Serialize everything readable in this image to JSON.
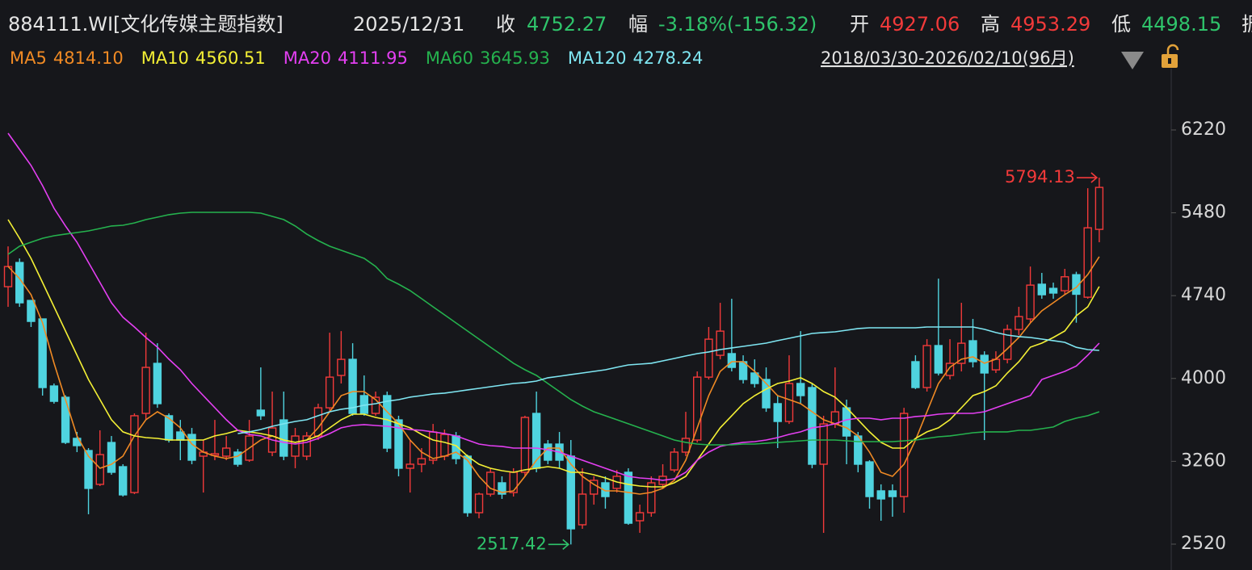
{
  "header": {
    "title": "884111.WI[文化传媒主题指数]",
    "date": "2025/12/31",
    "close_label": "收",
    "close": 4752.27,
    "change_label": "幅",
    "change": "-3.18%(-156.32)",
    "open_label": "开",
    "open": 4927.06,
    "high_label": "高",
    "high": 4953.29,
    "low_label": "低",
    "low": 4498.15,
    "amp_label": "振",
    "range": "2018/03/30-2026/02/10(96月)"
  },
  "chart_data": {
    "type": "candlestick",
    "up_color": "#f23a3a",
    "down_color": "#4fd3df",
    "ylim": [
      2289,
      6768
    ],
    "yticks": [
      2520,
      3260,
      4000,
      4740,
      5480,
      6220
    ],
    "grid": false,
    "high_marker": 5794.13,
    "low_marker": 2517.42,
    "open": [
      4820,
      5036,
      4697,
      4532,
      3933,
      3832,
      3465,
      3356,
      3054,
      3428,
      3212,
      2981,
      3688,
      4135,
      3667,
      3522,
      3500,
      3306,
      3313,
      3306,
      3342,
      3270,
      3717,
      3342,
      3630,
      3306,
      3306,
      3486,
      3738,
      4027,
      4171,
      3847,
      3688,
      3847,
      3630,
      3198,
      3234,
      3270,
      3306,
      3486,
      3306,
      2801,
      2967,
      3068,
      2981,
      3162,
      3688,
      3414,
      3414,
      3306,
      2693,
      2967,
      3068,
      3018,
      3162,
      2729,
      2801,
      3054,
      3183,
      3342,
      3450,
      4012,
      4207,
      4222,
      4150,
      4049,
      3991,
      3775,
      3616,
      3955,
      3919,
      3234,
      3594,
      3738,
      3486,
      3255,
      2996,
      2996,
      2945,
      4150,
      3919,
      4294,
      4027,
      4135,
      4337,
      4207,
      4077,
      4171,
      4438,
      4532,
      4842,
      4805,
      4784,
      4927.06,
      4726,
      5332
    ],
    "high": [
      5180,
      5072,
      4697,
      4532,
      3955,
      3850,
      3522,
      3378,
      3537,
      3486,
      3234,
      3688,
      4409,
      4315,
      3688,
      3630,
      3558,
      3450,
      3630,
      3486,
      3370,
      3630,
      4099,
      3883,
      3883,
      3558,
      3522,
      3775,
      4409,
      4423,
      4315,
      4027,
      3883,
      3883,
      3667,
      3450,
      3378,
      3594,
      3544,
      3522,
      3320,
      2981,
      3198,
      3126,
      3198,
      3667,
      3883,
      3450,
      3522,
      3450,
      3198,
      3126,
      3126,
      3183,
      3198,
      2873,
      3126,
      3234,
      3378,
      3702,
      4063,
      4460,
      4676,
      4712,
      4207,
      4171,
      4099,
      3847,
      4207,
      4423,
      3955,
      3667,
      4099,
      3811,
      3522,
      3270,
      3054,
      3054,
      3738,
      4207,
      4351,
      4892,
      4351,
      4676,
      4532,
      4243,
      4243,
      4481,
      4640,
      5000,
      4943,
      4856,
      4979,
      4953.29,
      5700,
      5794.13
    ],
    "low": [
      4640,
      4640,
      4460,
      3847,
      3775,
      3414,
      3342,
      2787,
      3039,
      3140,
      2945,
      2967,
      3630,
      3738,
      3428,
      3270,
      3234,
      2981,
      3270,
      3270,
      3212,
      3255,
      3630,
      3306,
      3270,
      3198,
      3270,
      3450,
      3702,
      3955,
      3667,
      3667,
      3667,
      3342,
      3126,
      2981,
      3162,
      3234,
      3270,
      3234,
      2765,
      2751,
      2945,
      2924,
      2945,
      3126,
      3162,
      3234,
      3198,
      2517.42,
      2657,
      2873,
      2837,
      2981,
      2693,
      2621,
      2765,
      3018,
      3162,
      3306,
      3428,
      3991,
      4171,
      4063,
      3955,
      3919,
      3702,
      3378,
      3594,
      3775,
      3198,
      2621,
      3558,
      3234,
      3162,
      2837,
      2729,
      2765,
      2801,
      3905,
      3883,
      4027,
      3991,
      4063,
      4099,
      3450,
      4049,
      4135,
      4387,
      4496,
      4712,
      4712,
      4748,
      4498.15,
      4712,
      5217
    ],
    "close": [
      5000,
      4676,
      4510,
      3919,
      3796,
      3429,
      3400,
      3018,
      3320,
      3162,
      2960,
      3667,
      4099,
      3775,
      3450,
      3450,
      3270,
      3342,
      3328,
      3378,
      3234,
      3486,
      3667,
      3558,
      3306,
      3486,
      3486,
      3738,
      4012,
      4171,
      3688,
      3688,
      3832,
      3378,
      3198,
      3234,
      3284,
      3522,
      3500,
      3284,
      2801,
      2967,
      3162,
      2967,
      3162,
      3652,
      3198,
      3270,
      3270,
      2657,
      2967,
      3090,
      2945,
      3126,
      2707,
      2801,
      3068,
      3126,
      3342,
      3465,
      4012,
      4351,
      4423,
      4099,
      3991,
      3955,
      3738,
      3616,
      3955,
      3847,
      3234,
      3594,
      3702,
      3486,
      3234,
      2945,
      2924,
      2945,
      3688,
      3919,
      4294,
      4049,
      4135,
      4315,
      4150,
      4049,
      4171,
      4438,
      4553,
      4834,
      4748,
      4763,
      4908.59,
      4752.27,
      5346,
      5707
    ],
    "series": [
      {
        "name": "MA5",
        "color": "#f08a24",
        "last": {
          "value": 4814.1,
          "label": "4814.10"
        },
        "values": [
          5001,
          4893,
          4749,
          4496,
          4136,
          3811,
          3487,
          3306,
          3198,
          3234,
          3306,
          3487,
          3631,
          3703,
          3645,
          3559,
          3414,
          3342,
          3306,
          3285,
          3306,
          3378,
          3450,
          3487,
          3450,
          3429,
          3450,
          3559,
          3703,
          3847,
          3883,
          3883,
          3811,
          3703,
          3595,
          3450,
          3342,
          3285,
          3306,
          3342,
          3270,
          3126,
          3018,
          2982,
          2996,
          3126,
          3270,
          3378,
          3378,
          3234,
          3126,
          3054,
          2996,
          2996,
          2982,
          2967,
          2982,
          3018,
          3090,
          3270,
          3559,
          3847,
          4063,
          4150,
          4150,
          4063,
          3955,
          3847,
          3811,
          3775,
          3703,
          3631,
          3595,
          3559,
          3487,
          3342,
          3162,
          3126,
          3234,
          3450,
          3703,
          3955,
          4100,
          4172,
          4193,
          4136,
          4172,
          4265,
          4366,
          4496,
          4604,
          4676,
          4749,
          4814.1,
          4929,
          5088
        ]
      },
      {
        "name": "MA10",
        "color": "#f4f035",
        "last": 4560.51,
        "values": [
          5419,
          5253,
          5073,
          4857,
          4640,
          4424,
          4208,
          3991,
          3811,
          3631,
          3523,
          3487,
          3472,
          3465,
          3450,
          3450,
          3450,
          3450,
          3487,
          3508,
          3537,
          3523,
          3508,
          3487,
          3450,
          3429,
          3450,
          3487,
          3559,
          3631,
          3681,
          3681,
          3652,
          3631,
          3595,
          3559,
          3501,
          3450,
          3429,
          3400,
          3306,
          3234,
          3198,
          3176,
          3162,
          3184,
          3198,
          3212,
          3198,
          3162,
          3162,
          3140,
          3111,
          3075,
          3054,
          3039,
          3032,
          3032,
          3068,
          3126,
          3270,
          3414,
          3559,
          3667,
          3775,
          3847,
          3905,
          3955,
          3977,
          4006,
          3955,
          3883,
          3833,
          3739,
          3631,
          3523,
          3429,
          3378,
          3378,
          3465,
          3523,
          3559,
          3631,
          3739,
          3847,
          3883,
          3934,
          4049,
          4150,
          4280,
          4316,
          4366,
          4424,
          4560.51,
          4640,
          4821
        ]
      },
      {
        "name": "MA20",
        "color": "#e43ff2",
        "last": 4111.95,
        "values": [
          6191,
          6047,
          5903,
          5722,
          5520,
          5362,
          5217,
          5037,
          4857,
          4676,
          4547,
          4460,
          4366,
          4280,
          4172,
          4078,
          3955,
          3847,
          3739,
          3631,
          3537,
          3501,
          3487,
          3450,
          3429,
          3414,
          3429,
          3465,
          3508,
          3559,
          3580,
          3588,
          3580,
          3573,
          3559,
          3544,
          3537,
          3523,
          3508,
          3487,
          3450,
          3414,
          3400,
          3393,
          3378,
          3378,
          3378,
          3364,
          3342,
          3306,
          3270,
          3234,
          3198,
          3162,
          3126,
          3111,
          3104,
          3090,
          3104,
          3162,
          3270,
          3342,
          3393,
          3414,
          3429,
          3436,
          3450,
          3472,
          3501,
          3523,
          3559,
          3573,
          3595,
          3631,
          3645,
          3645,
          3631,
          3645,
          3645,
          3660,
          3667,
          3681,
          3688,
          3688,
          3688,
          3703,
          3739,
          3775,
          3811,
          3847,
          3991,
          4027,
          4063,
          4111.95,
          4208,
          4316
        ]
      },
      {
        "name": "MA60",
        "color": "#25b24e",
        "last": 3645.93,
        "values": [
          5109,
          5181,
          5217,
          5253,
          5275,
          5290,
          5304,
          5318,
          5340,
          5362,
          5369,
          5390,
          5419,
          5441,
          5463,
          5477,
          5484,
          5484,
          5484,
          5484,
          5484,
          5484,
          5477,
          5448,
          5419,
          5362,
          5290,
          5232,
          5181,
          5145,
          5109,
          5073,
          5001,
          4893,
          4842,
          4785,
          4713,
          4640,
          4568,
          4496,
          4424,
          4352,
          4280,
          4208,
          4136,
          4078,
          4027,
          3955,
          3883,
          3811,
          3753,
          3703,
          3667,
          3631,
          3595,
          3559,
          3523,
          3487,
          3450,
          3429,
          3414,
          3407,
          3407,
          3407,
          3414,
          3414,
          3422,
          3429,
          3436,
          3443,
          3450,
          3450,
          3450,
          3443,
          3436,
          3436,
          3436,
          3436,
          3443,
          3450,
          3465,
          3479,
          3487,
          3501,
          3515,
          3523,
          3523,
          3523,
          3537,
          3537,
          3551,
          3566,
          3616,
          3645.93,
          3667,
          3703
        ]
      },
      {
        "name": "MA120",
        "color": "#7fe6f2",
        "last": 4278.24,
        "values": [
          null,
          null,
          null,
          null,
          null,
          null,
          null,
          null,
          null,
          null,
          null,
          null,
          null,
          null,
          null,
          null,
          null,
          null,
          null,
          null,
          3508,
          3523,
          3544,
          3573,
          3595,
          3616,
          3631,
          3667,
          3703,
          3725,
          3739,
          3761,
          3775,
          3797,
          3811,
          3833,
          3847,
          3862,
          3869,
          3883,
          3898,
          3912,
          3926,
          3941,
          3955,
          3963,
          3977,
          4006,
          4020,
          4035,
          4049,
          4063,
          4078,
          4100,
          4121,
          4128,
          4136,
          4157,
          4179,
          4201,
          4222,
          4237,
          4258,
          4273,
          4287,
          4301,
          4316,
          4338,
          4359,
          4381,
          4402,
          4410,
          4417,
          4431,
          4446,
          4453,
          4453,
          4453,
          4453,
          4453,
          4460,
          4460,
          4460,
          4460,
          4460,
          4439,
          4410,
          4388,
          4374,
          4366,
          4352,
          4338,
          4323,
          4278.24,
          4258,
          4251
        ]
      }
    ]
  }
}
